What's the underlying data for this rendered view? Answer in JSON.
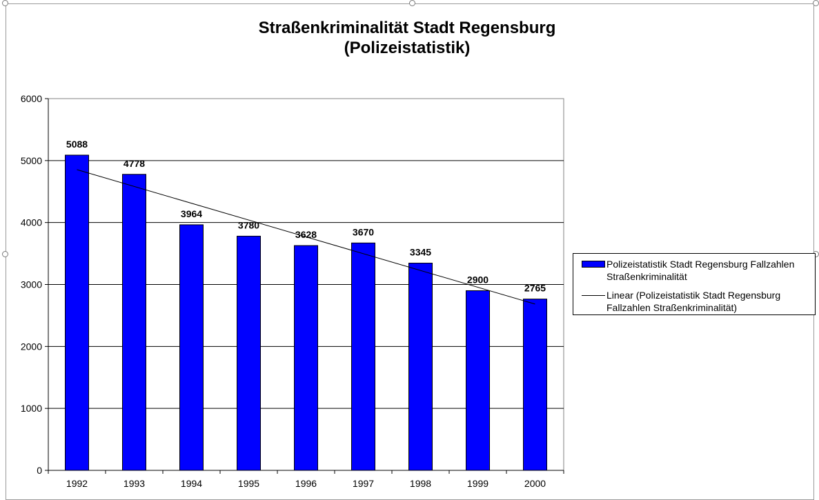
{
  "chart_data": {
    "type": "bar",
    "title_lines": [
      "Straßenkriminalität Stadt Regensburg",
      "(Polizeistatistik)"
    ],
    "categories": [
      "1992",
      "1993",
      "1994",
      "1995",
      "1996",
      "1997",
      "1998",
      "1999",
      "2000"
    ],
    "series": [
      {
        "name": "Polizeistatistik Stadt Regensburg Fallzahlen Straßenkriminalität",
        "values": [
          5088,
          4778,
          3964,
          3780,
          3628,
          3670,
          3345,
          2900,
          2765
        ],
        "color": "#0000ff"
      }
    ],
    "trendline": {
      "type": "linear",
      "name": "Linear (Polizeistatistik Stadt Regensburg Fallzahlen Straßenkriminalität)",
      "color": "#000000"
    },
    "data_labels": [
      "5088",
      "4778",
      "3964",
      "3780",
      "3628",
      "3670",
      "3345",
      "2900",
      "2765"
    ],
    "yticks": [
      "0",
      "1000",
      "2000",
      "3000",
      "4000",
      "5000",
      "6000"
    ],
    "ylim": [
      0,
      6000
    ],
    "grid": true,
    "legend_position": "right"
  }
}
